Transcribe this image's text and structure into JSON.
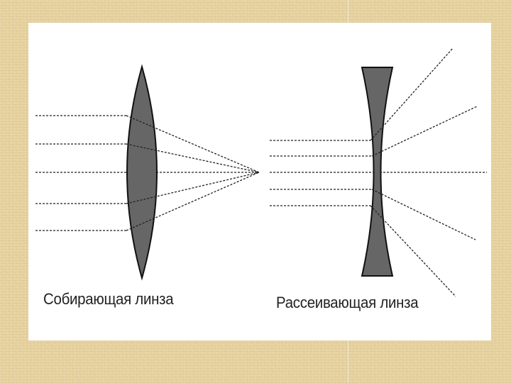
{
  "colors": {
    "background": "#e6d2a0",
    "slide": "#ffffff",
    "lens_fill": "#666666",
    "lens_stroke": "#111111",
    "ray": "#222222"
  },
  "lenses": {
    "converging": {
      "caption": "Собирающая линза",
      "icon": "biconvex-lens"
    },
    "diverging": {
      "caption": "Рассеивающая линза",
      "icon": "biconcave-lens"
    }
  }
}
